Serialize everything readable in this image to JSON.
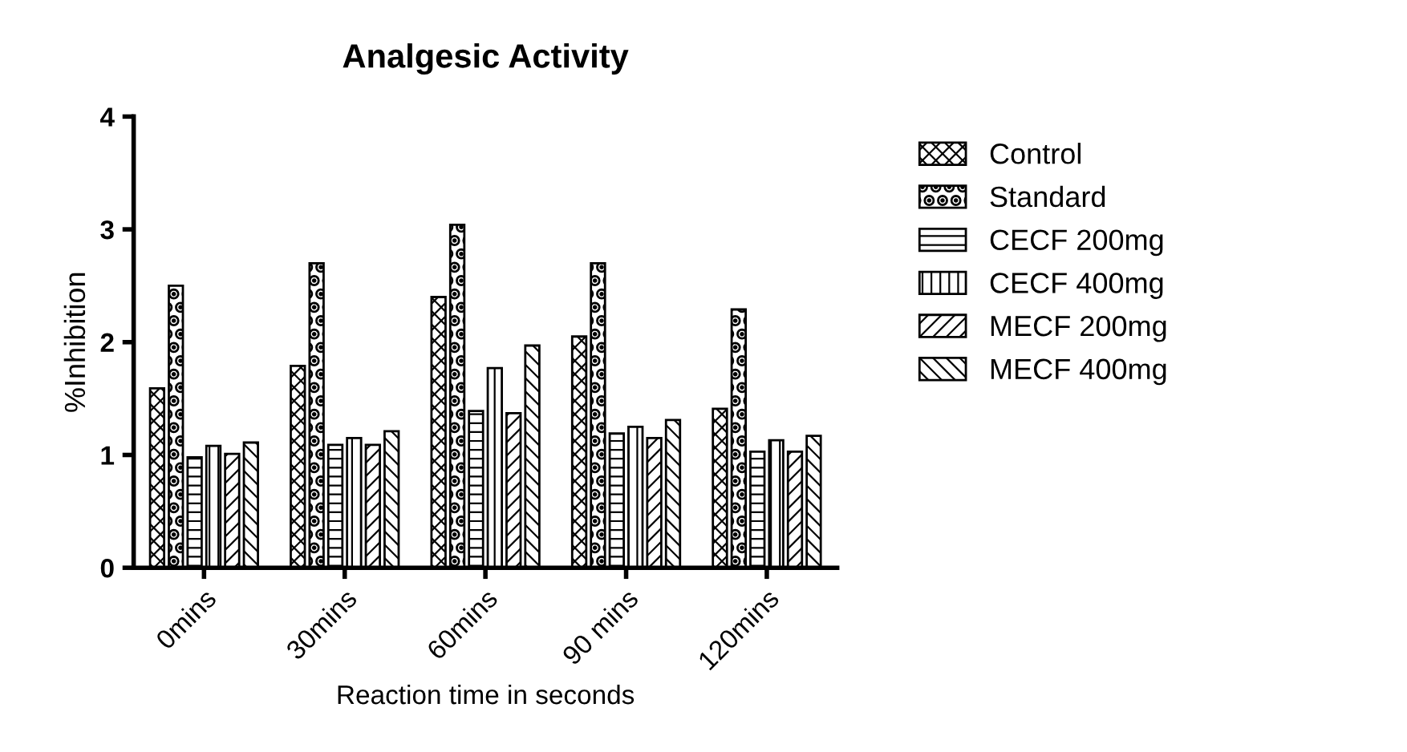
{
  "chart_data": {
    "type": "bar",
    "title": "Analgesic Activity",
    "xlabel": "Reaction time in seconds",
    "ylabel": "%Inhibition",
    "categories": [
      "0mins",
      "30mins",
      "60mins",
      "90 mins",
      "120mins"
    ],
    "series": [
      {
        "name": "Control",
        "color": "#000000",
        "values": [
          1.59,
          1.79,
          2.4,
          2.05,
          1.41
        ]
      },
      {
        "name": "Standard",
        "color": "#000000",
        "values": [
          2.5,
          2.7,
          3.04,
          2.7,
          2.29
        ]
      },
      {
        "name": "CECF 200mg",
        "color": "#000000",
        "values": [
          0.98,
          1.09,
          1.39,
          1.19,
          1.03
        ]
      },
      {
        "name": "CECF 400mg",
        "color": "#000000",
        "values": [
          1.08,
          1.15,
          1.77,
          1.25,
          1.13
        ]
      },
      {
        "name": "MECF 200mg",
        "color": "#000000",
        "values": [
          1.01,
          1.09,
          1.37,
          1.15,
          1.03
        ]
      },
      {
        "name": "MECF 400mg",
        "color": "#000000",
        "values": [
          1.11,
          1.21,
          1.97,
          1.31,
          1.17
        ]
      }
    ],
    "ylim": [
      0,
      4
    ],
    "yticks": [
      0,
      1,
      2,
      3,
      4
    ],
    "grid": false,
    "legend": "right"
  }
}
